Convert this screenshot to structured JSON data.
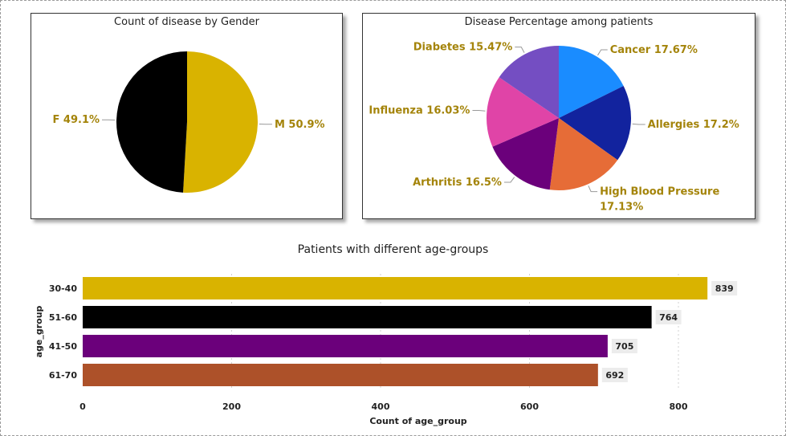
{
  "chart_data": [
    {
      "type": "pie",
      "title": "Count of disease by Gender",
      "labels": [
        "M",
        "F"
      ],
      "values": [
        50.9,
        49.1
      ],
      "value_labels": [
        "M 50.9%",
        "F 49.1%"
      ],
      "colors": [
        "#D9B300",
        "#000000"
      ]
    },
    {
      "type": "pie",
      "title": "Disease Percentage among patients",
      "labels": [
        "Cancer",
        "Allergies",
        "High Blood Pressure",
        "Arthritis",
        "Influenza",
        "Diabetes"
      ],
      "values": [
        17.67,
        17.2,
        17.13,
        16.5,
        16.03,
        15.47
      ],
      "value_labels": [
        "Cancer 17.67%",
        "Allergies 17.2%",
        "High Blood Pressure 17.13%",
        "Arthritis 16.5%",
        "Influenza 16.03%",
        "Diabetes 15.47%"
      ],
      "colors": [
        "#1A8CFF",
        "#12239E",
        "#E66C37",
        "#6B007B",
        "#E044A7",
        "#744EC2"
      ]
    },
    {
      "type": "bar",
      "orientation": "horizontal",
      "title": "Patients with different age-groups",
      "categories": [
        "30-40",
        "51-60",
        "41-50",
        "61-70"
      ],
      "values": [
        839,
        764,
        705,
        692
      ],
      "colors": [
        "#D9B300",
        "#000000",
        "#6B007B",
        "#AD5129"
      ],
      "xlabel": "Count of age_group",
      "ylabel": "age_group",
      "xlim": [
        0,
        900
      ],
      "xticks": [
        0,
        200,
        400,
        600,
        800
      ],
      "grid": true
    }
  ],
  "label_color": "#A4840A"
}
